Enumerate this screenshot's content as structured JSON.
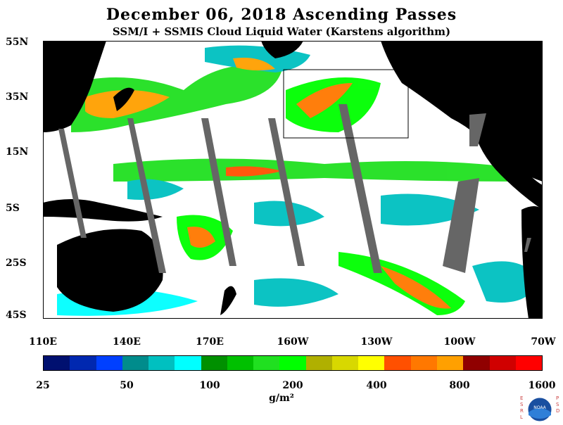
{
  "title": "December 06, 2018  Ascending Passes",
  "subtitle": "SSM/I + SSMIS Cloud Liquid Water (Karstens algorithm)",
  "lat_labels": [
    "55N",
    "35N",
    "15N",
    "5S",
    "25S",
    "45S"
  ],
  "lon_labels": [
    "110E",
    "140E",
    "170E",
    "160W",
    "130W",
    "100W",
    "70W"
  ],
  "colorbar": {
    "colors": [
      "#001070",
      "#0028b0",
      "#0040ff",
      "#008c8c",
      "#00c0c0",
      "#00ffff",
      "#009000",
      "#00c000",
      "#20e020",
      "#00ff00",
      "#b0b000",
      "#d8d800",
      "#ffff00",
      "#ff5000",
      "#ff7800",
      "#ffa000",
      "#900000",
      "#d00000",
      "#ff0000"
    ],
    "labels": [
      "25",
      "50",
      "100",
      "200",
      "400",
      "800",
      "1600"
    ]
  },
  "unit": "g/m²",
  "logo": {
    "left_letters": [
      "E",
      "S",
      "R",
      "L"
    ],
    "right_letters": [
      "P",
      "S",
      "D"
    ],
    "center": "NOAA"
  },
  "colors": {
    "land": "#000000",
    "ocean": "#ffffff",
    "swath_gap": "#666666",
    "region_box": "#000000"
  }
}
